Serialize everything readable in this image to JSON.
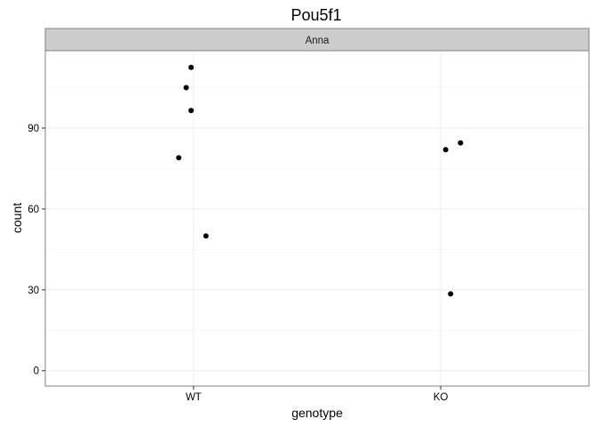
{
  "chart_data": {
    "type": "scatter",
    "title": "Pou5f1",
    "facet": "Anna",
    "xlabel": "genotype",
    "ylabel": "count",
    "categories": [
      "WT",
      "KO"
    ],
    "ylim": [
      -5.7,
      118.7
    ],
    "yticks": [
      0,
      30,
      60,
      90
    ],
    "grid": true,
    "theme": "bw",
    "point_color": "#000000",
    "points": [
      {
        "x": "WT",
        "jitter": -0.01,
        "y": 112.5
      },
      {
        "x": "WT",
        "jitter": -0.03,
        "y": 105.0
      },
      {
        "x": "WT",
        "jitter": -0.01,
        "y": 96.5
      },
      {
        "x": "WT",
        "jitter": -0.06,
        "y": 79.0
      },
      {
        "x": "WT",
        "jitter": 0.05,
        "y": 50.0
      },
      {
        "x": "KO",
        "jitter": 0.08,
        "y": 84.5
      },
      {
        "x": "KO",
        "jitter": 0.02,
        "y": 82.0
      },
      {
        "x": "KO",
        "jitter": 0.04,
        "y": 28.5
      }
    ]
  }
}
